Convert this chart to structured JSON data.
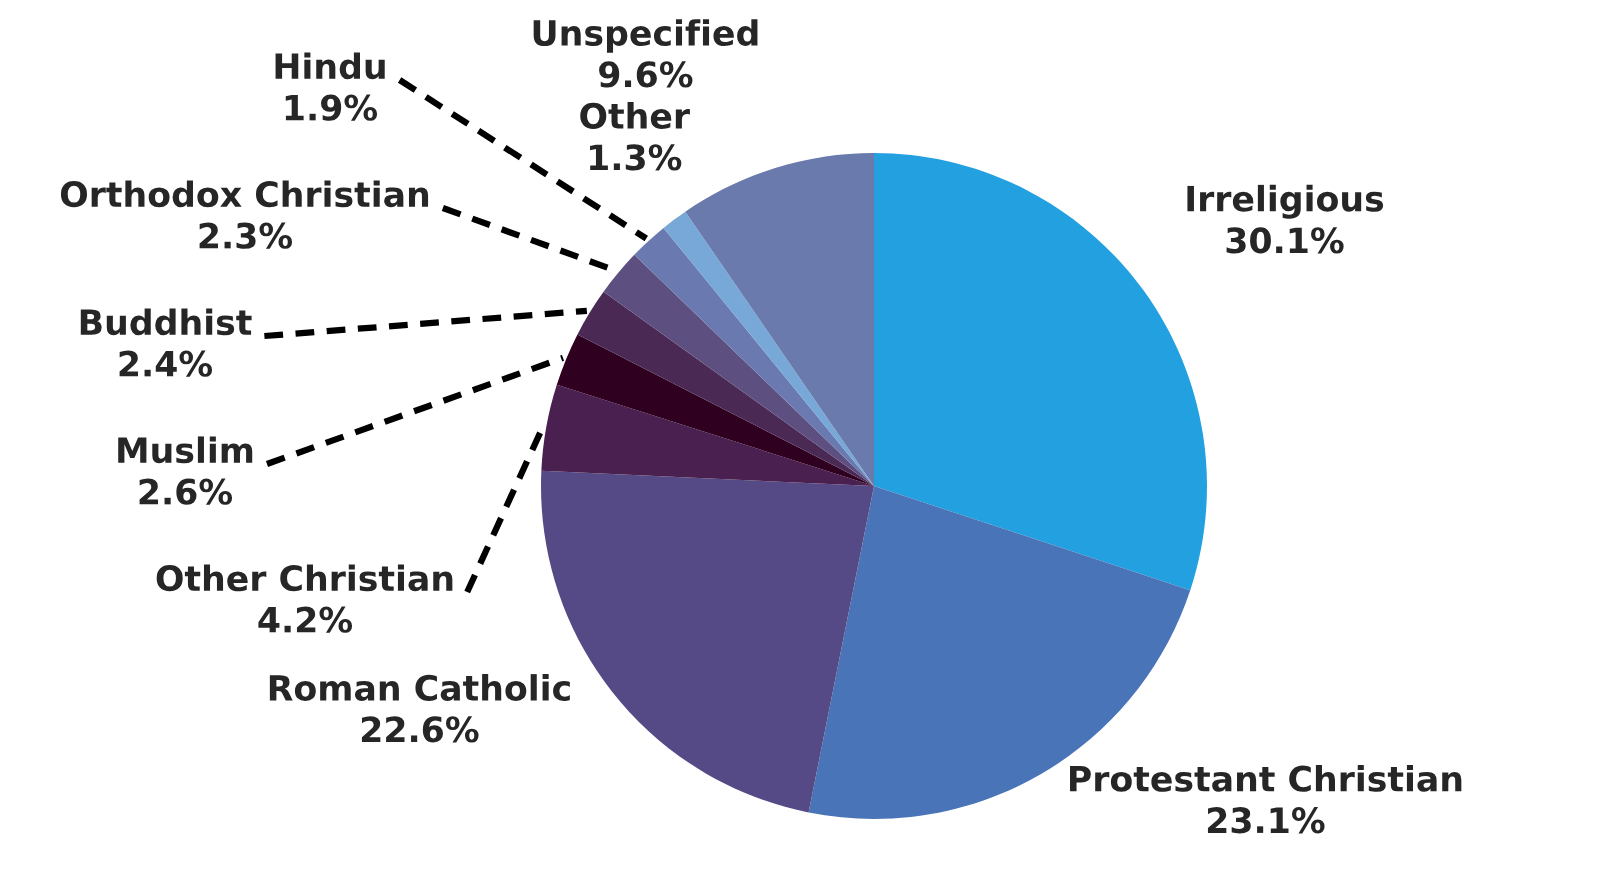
{
  "chart_data": {
    "type": "pie",
    "categories": [
      "Irreligious",
      "Protestant Christian",
      "Roman Catholic",
      "Other Christian",
      "Muslim",
      "Buddhist",
      "Orthodox Christian",
      "Hindu",
      "Other",
      "Unspecified"
    ],
    "values": [
      30.1,
      23.1,
      22.6,
      4.2,
      2.6,
      2.4,
      2.3,
      1.9,
      1.3,
      9.6
    ],
    "colors": [
      "#22a0e0",
      "#4a74b8",
      "#554a85",
      "#4a2050",
      "#300020",
      "#4a2a55",
      "#5d5080",
      "#6a7ab0",
      "#78a8d8",
      "#6a7aad"
    ],
    "value_labels": [
      "30.1%",
      "23.1%",
      "22.6%",
      "4.2%",
      "2.6%",
      "2.4%",
      "2.3%",
      "1.9%",
      "1.3%",
      "9.6%"
    ]
  }
}
